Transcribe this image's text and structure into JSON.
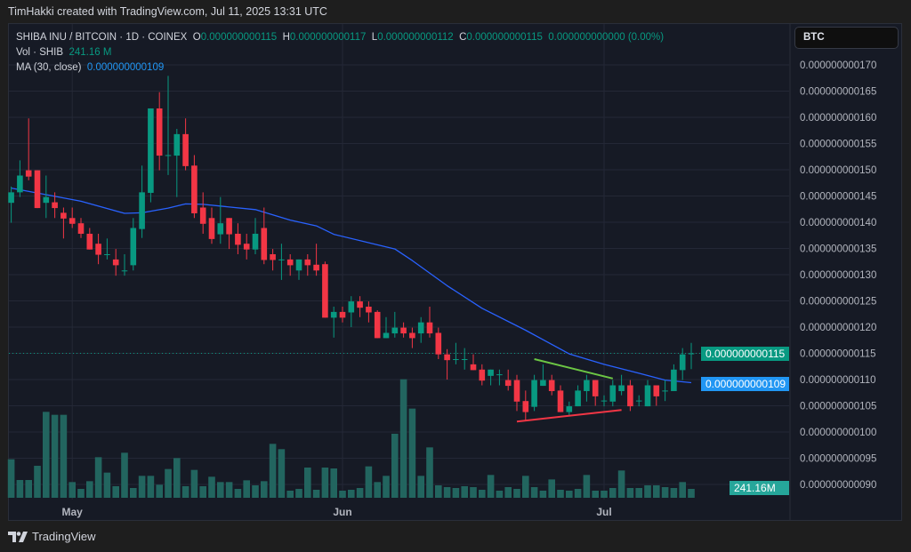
{
  "credit": "TimHakki created with TradingView.com, Jul 11, 2025 13:31 UTC",
  "legend": {
    "symbol": "SHIBA INU / BITCOIN · 1D · COINEX",
    "o_label": "O",
    "o": "0.000000000115",
    "h_label": "H",
    "h": "0.000000000117",
    "l_label": "L",
    "l": "0.000000000112",
    "c_label": "C",
    "c": "0.000000000115",
    "change": "0.000000000000 (0.00%)",
    "vol_label": "Vol · SHIB",
    "vol": "241.16 M",
    "ma_label": "MA (30, close)",
    "ma": "0.000000000109"
  },
  "currency_button": "BTC",
  "tags": {
    "last_price": "0.000000000115",
    "ma": "0.000000000109",
    "volume": "241.16M"
  },
  "footer": {
    "brand": "TradingView"
  },
  "colors": {
    "up": "#089981",
    "down": "#f23645",
    "ma": "#2962ff",
    "volume": "#22655f",
    "trend_upper": "#6cc644",
    "trend_lower": "#f23645",
    "last_price_tag": "#089981",
    "ma_tag": "#2196f3",
    "volume_tag": "#26a69a"
  },
  "chart_data": {
    "type": "candlestick",
    "title": "",
    "ylim": [
      9e-11,
      1.7e-10
    ],
    "y_ticks": [
      "0.000000000170",
      "0.000000000165",
      "0.000000000160",
      "0.000000000155",
      "0.000000000150",
      "0.000000000145",
      "0.000000000140",
      "0.000000000135",
      "0.000000000130",
      "0.000000000125",
      "0.000000000120",
      "0.000000000115",
      "0.000000000110",
      "0.000000000105",
      "0.000000000100",
      "0.000000000095",
      "0.000000000090"
    ],
    "y_tick_values": [
      1.7e-10,
      1.65e-10,
      1.6e-10,
      1.55e-10,
      1.5e-10,
      1.45e-10,
      1.4e-10,
      1.35e-10,
      1.3e-10,
      1.25e-10,
      1.2e-10,
      1.15e-10,
      1.1e-10,
      1.05e-10,
      1e-10,
      9.5e-11,
      9e-11
    ],
    "x_ticks": [
      {
        "label": "May",
        "date": "2025-05-01"
      },
      {
        "label": "Jun",
        "date": "2025-06-01"
      },
      {
        "label": "Jul",
        "date": "2025-07-01"
      }
    ],
    "grid": true,
    "dates": [
      "2025-04-24",
      "2025-04-25",
      "2025-04-26",
      "2025-04-27",
      "2025-04-28",
      "2025-04-29",
      "2025-04-30",
      "2025-05-01",
      "2025-05-02",
      "2025-05-03",
      "2025-05-04",
      "2025-05-05",
      "2025-05-06",
      "2025-05-07",
      "2025-05-08",
      "2025-05-09",
      "2025-05-10",
      "2025-05-11",
      "2025-05-12",
      "2025-05-13",
      "2025-05-14",
      "2025-05-15",
      "2025-05-16",
      "2025-05-17",
      "2025-05-18",
      "2025-05-19",
      "2025-05-20",
      "2025-05-21",
      "2025-05-22",
      "2025-05-23",
      "2025-05-24",
      "2025-05-25",
      "2025-05-26",
      "2025-05-27",
      "2025-05-28",
      "2025-05-29",
      "2025-05-30",
      "2025-05-31",
      "2025-06-01",
      "2025-06-02",
      "2025-06-03",
      "2025-06-04",
      "2025-06-05",
      "2025-06-06",
      "2025-06-07",
      "2025-06-08",
      "2025-06-09",
      "2025-06-10",
      "2025-06-11",
      "2025-06-12",
      "2025-06-13",
      "2025-06-14",
      "2025-06-15",
      "2025-06-16",
      "2025-06-17",
      "2025-06-18",
      "2025-06-19",
      "2025-06-20",
      "2025-06-21",
      "2025-06-22",
      "2025-06-23",
      "2025-06-24",
      "2025-06-25",
      "2025-06-26",
      "2025-06-27",
      "2025-06-28",
      "2025-06-29",
      "2025-06-30",
      "2025-07-01",
      "2025-07-02",
      "2025-07-03",
      "2025-07-04",
      "2025-07-05",
      "2025-07-06",
      "2025-07-07",
      "2025-07-08",
      "2025-07-09",
      "2025-07-10",
      "2025-07-11"
    ],
    "ohlc": [
      [
        1.437e-10,
        1.468e-10,
        1.399e-10,
        1.457e-10
      ],
      [
        1.457e-10,
        1.518e-10,
        1.448e-10,
        1.489e-10
      ],
      [
        1.499e-10,
        1.598e-10,
        1.48e-10,
        1.487e-10
      ],
      [
        1.499e-10,
        1.499e-10,
        1.427e-10,
        1.427e-10
      ],
      [
        1.437e-10,
        1.489e-10,
        1.408e-10,
        1.448e-10
      ],
      [
        1.438e-10,
        1.457e-10,
        1.408e-10,
        1.427e-10
      ],
      [
        1.418e-10,
        1.428e-10,
        1.369e-10,
        1.407e-10
      ],
      [
        1.408e-10,
        1.428e-10,
        1.389e-10,
        1.397e-10
      ],
      [
        1.398e-10,
        1.408e-10,
        1.37e-10,
        1.378e-10
      ],
      [
        1.378e-10,
        1.389e-10,
        1.348e-10,
        1.348e-10
      ],
      [
        1.359e-10,
        1.378e-10,
        1.32e-10,
        1.338e-10
      ],
      [
        1.338e-10,
        1.369e-10,
        1.329e-10,
        1.339e-10
      ],
      [
        1.329e-10,
        1.349e-10,
        1.298e-10,
        1.318e-10
      ],
      [
        1.307e-10,
        1.339e-10,
        1.298e-10,
        1.308e-10
      ],
      [
        1.318e-10,
        1.408e-10,
        1.308e-10,
        1.389e-10
      ],
      [
        1.387e-10,
        1.508e-10,
        1.37e-10,
        1.457e-10
      ],
      [
        1.456e-10,
        1.617e-10,
        1.438e-10,
        1.617e-10
      ],
      [
        1.617e-10,
        1.648e-10,
        1.499e-10,
        1.527e-10
      ],
      [
        1.527e-10,
        1.679e-10,
        1.49e-10,
        1.528e-10
      ],
      [
        1.527e-10,
        1.578e-10,
        1.448e-10,
        1.568e-10
      ],
      [
        1.568e-10,
        1.598e-10,
        1.499e-10,
        1.507e-10
      ],
      [
        1.508e-10,
        1.528e-10,
        1.408e-10,
        1.417e-10
      ],
      [
        1.428e-10,
        1.457e-10,
        1.378e-10,
        1.397e-10
      ],
      [
        1.408e-10,
        1.428e-10,
        1.359e-10,
        1.368e-10
      ],
      [
        1.377e-10,
        1.448e-10,
        1.359e-10,
        1.398e-10
      ],
      [
        1.408e-10,
        1.408e-10,
        1.349e-10,
        1.377e-10
      ],
      [
        1.378e-10,
        1.398e-10,
        1.339e-10,
        1.357e-10
      ],
      [
        1.359e-10,
        1.378e-10,
        1.329e-10,
        1.348e-10
      ],
      [
        1.348e-10,
        1.408e-10,
        1.339e-10,
        1.378e-10
      ],
      [
        1.389e-10,
        1.428e-10,
        1.32e-10,
        1.328e-10
      ],
      [
        1.339e-10,
        1.349e-10,
        1.308e-10,
        1.328e-10
      ],
      [
        1.328e-10,
        1.359e-10,
        1.29e-10,
        1.329e-10
      ],
      [
        1.329e-10,
        1.339e-10,
        1.298e-10,
        1.318e-10
      ],
      [
        1.308e-10,
        1.329e-10,
        1.29e-10,
        1.329e-10
      ],
      [
        1.329e-10,
        1.339e-10,
        1.298e-10,
        1.318e-10
      ],
      [
        1.319e-10,
        1.359e-10,
        1.298e-10,
        1.308e-10
      ],
      [
        1.32e-10,
        1.325e-10,
        1.218e-10,
        1.218e-10
      ],
      [
        1.218e-10,
        1.239e-10,
        1.18e-10,
        1.229e-10
      ],
      [
        1.229e-10,
        1.239e-10,
        1.209e-10,
        1.218e-10
      ],
      [
        1.228e-10,
        1.259e-10,
        1.2e-10,
        1.249e-10
      ],
      [
        1.249e-10,
        1.259e-10,
        1.219e-10,
        1.237e-10
      ],
      [
        1.239e-10,
        1.249e-10,
        1.209e-10,
        1.228e-10
      ],
      [
        1.229e-10,
        1.232e-10,
        1.179e-10,
        1.179e-10
      ],
      [
        1.179e-10,
        1.219e-10,
        1.179e-10,
        1.189e-10
      ],
      [
        1.188e-10,
        1.229e-10,
        1.18e-10,
        1.199e-10
      ],
      [
        1.199e-10,
        1.209e-10,
        1.18e-10,
        1.188e-10
      ],
      [
        1.189e-10,
        1.199e-10,
        1.16e-10,
        1.179e-10
      ],
      [
        1.188e-10,
        1.219e-10,
        1.17e-10,
        1.209e-10
      ],
      [
        1.209e-10,
        1.239e-10,
        1.18e-10,
        1.188e-10
      ],
      [
        1.189e-10,
        1.199e-10,
        1.139e-10,
        1.148e-10
      ],
      [
        1.148e-10,
        1.158e-10,
        1.1e-10,
        1.137e-10
      ],
      [
        1.138e-10,
        1.17e-10,
        1.129e-10,
        1.139e-10
      ],
      [
        1.138e-10,
        1.16e-10,
        1.119e-10,
        1.139e-10
      ],
      [
        1.129e-10,
        1.148e-10,
        1.118e-10,
        1.118e-10
      ],
      [
        1.119e-10,
        1.129e-10,
        1.089e-10,
        1.098e-10
      ],
      [
        1.107e-10,
        1.119e-10,
        1.089e-10,
        1.119e-10
      ],
      [
        1.109e-10,
        1.119e-10,
        1.089e-10,
        1.11e-10
      ],
      [
        1.099e-10,
        1.119e-10,
        1.079e-10,
        1.088e-10
      ],
      [
        1.099e-10,
        1.109e-10,
        1.04e-10,
        1.058e-10
      ],
      [
        1.059e-10,
        1.079e-10,
        1.021e-10,
        1.038e-10
      ],
      [
        1.048e-10,
        1.109e-10,
        1.04e-10,
        1.099e-10
      ],
      [
        1.088e-10,
        1.129e-10,
        1.088e-10,
        1.099e-10
      ],
      [
        1.099e-10,
        1.109e-10,
        1.07e-10,
        1.078e-10
      ],
      [
        1.079e-10,
        1.089e-10,
        1.038e-10,
        1.038e-10
      ],
      [
        1.038e-10,
        1.058e-10,
        1.03e-10,
        1.049e-10
      ],
      [
        1.049e-10,
        1.089e-10,
        1.049e-10,
        1.079e-10
      ],
      [
        1.078e-10,
        1.109e-10,
        1.058e-10,
        1.099e-10
      ],
      [
        1.099e-10,
        1.099e-10,
        1.05e-10,
        1.068e-10
      ],
      [
        1.059e-10,
        1.07e-10,
        1.049e-10,
        1.06e-10
      ],
      [
        1.058e-10,
        1.099e-10,
        1.049e-10,
        1.089e-10
      ],
      [
        1.078e-10,
        1.109e-10,
        1.07e-10,
        1.089e-10
      ],
      [
        1.089e-10,
        1.099e-10,
        1.04e-10,
        1.049e-10
      ],
      [
        1.059e-10,
        1.07e-10,
        1.049e-10,
        1.06e-10
      ],
      [
        1.049e-10,
        1.099e-10,
        1.049e-10,
        1.089e-10
      ],
      [
        1.089e-10,
        1.089e-10,
        1.05e-10,
        1.068e-10
      ],
      [
        1.078e-10,
        1.099e-10,
        1.059e-10,
        1.079e-10
      ],
      [
        1.078e-10,
        1.129e-10,
        1.078e-10,
        1.119e-10
      ],
      [
        1.118e-10,
        1.16e-10,
        1.099e-10,
        1.148e-10
      ],
      [
        1.15e-10,
        1.17e-10,
        1.12e-10,
        1.15e-10
      ]
    ],
    "volume_unit": "M",
    "volume": [
      1045,
      482,
      482,
      868,
      2331,
      2251,
      2251,
      426,
      241,
      450,
      1101,
      683,
      314,
      1222,
      265,
      595,
      595,
      354,
      780,
      1077,
      314,
      756,
      314,
      571,
      426,
      426,
      241,
      474,
      338,
      450,
      1463,
      1319,
      193,
      241,
      820,
      217,
      820,
      796,
      193,
      217,
      265,
      852,
      426,
      595,
      1737,
      3216,
      2420,
      595,
      1367,
      338,
      289,
      265,
      314,
      289,
      217,
      619,
      193,
      289,
      241,
      595,
      289,
      193,
      498,
      217,
      193,
      241,
      619,
      193,
      193,
      265,
      740,
      265,
      265,
      338,
      338,
      289,
      265,
      426,
      241.16
    ],
    "ma_30_close": [
      [
        "2025-04-24",
        1.465e-10
      ],
      [
        "2025-05-02",
        1.44e-10
      ],
      [
        "2025-05-07",
        1.417e-10
      ],
      [
        "2025-05-09",
        1.418e-10
      ],
      [
        "2025-05-12",
        1.427e-10
      ],
      [
        "2025-05-14",
        1.435e-10
      ],
      [
        "2025-05-16",
        1.434e-10
      ],
      [
        "2025-05-22",
        1.424e-10
      ],
      [
        "2025-05-26",
        1.404e-10
      ],
      [
        "2025-05-29",
        1.393e-10
      ],
      [
        "2025-05-31",
        1.377e-10
      ],
      [
        "2025-06-07",
        1.349e-10
      ],
      [
        "2025-06-09",
        1.327e-10
      ],
      [
        "2025-06-13",
        1.279e-10
      ],
      [
        "2025-06-17",
        1.236e-10
      ],
      [
        "2025-06-22",
        1.194e-10
      ],
      [
        "2025-06-27",
        1.149e-10
      ],
      [
        "2025-07-01",
        1.129e-10
      ],
      [
        "2025-07-05",
        1.112e-10
      ],
      [
        "2025-07-08",
        1.099e-10
      ],
      [
        "2025-07-11",
        1.094e-10
      ]
    ],
    "trendlines": [
      {
        "color_key": "trend_upper",
        "from": [
          "2025-06-23",
          1.139e-10
        ],
        "to": [
          "2025-07-02",
          1.102e-10
        ]
      },
      {
        "color_key": "trend_lower",
        "from": [
          "2025-06-21",
          1.02e-10
        ],
        "to": [
          "2025-07-03",
          1.042e-10
        ]
      }
    ],
    "last_price": 1.15e-10
  }
}
